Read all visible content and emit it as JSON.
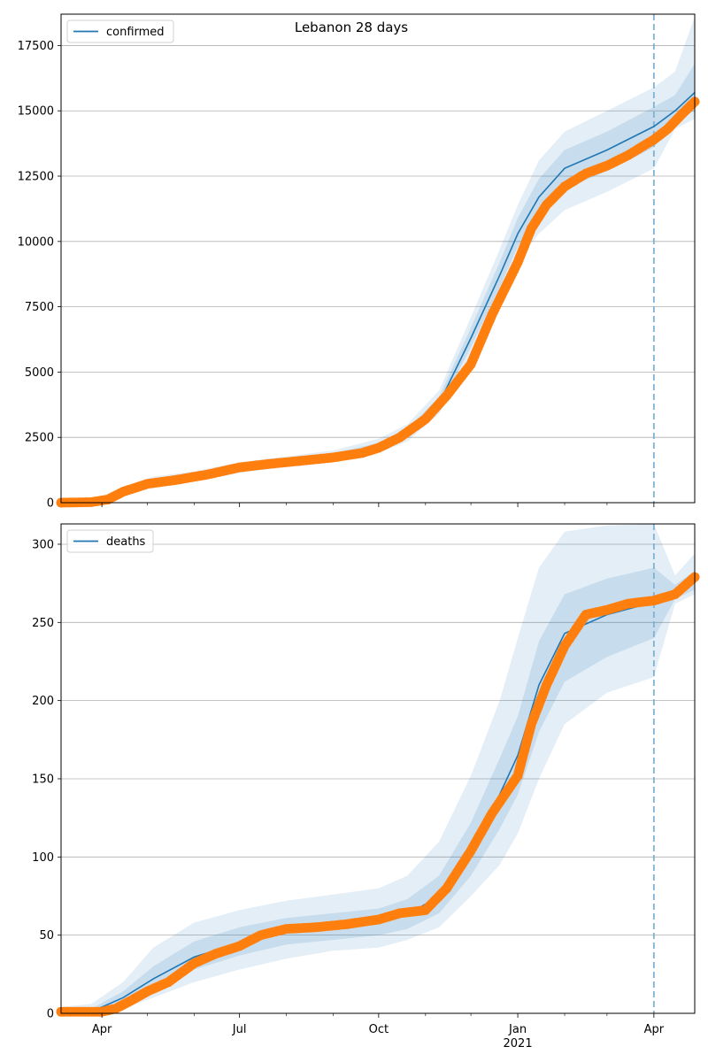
{
  "title": "Lebanon 28 days",
  "colors": {
    "model_line": "#1f77b4",
    "band": "#1f77b4",
    "observed": "#ff7f0e",
    "grid": "#b0b0b0",
    "forecast_line": "#7fb1d3"
  },
  "x_axis": {
    "ticks": [
      {
        "date": "2020-04-01",
        "label": "Apr"
      },
      {
        "date": "2020-07-01",
        "label": "Jul"
      },
      {
        "date": "2020-10-01",
        "label": "Oct"
      },
      {
        "date": "2021-01-01",
        "label": "Jan",
        "sublabel": "2021"
      },
      {
        "date": "2021-04-01",
        "label": "Apr"
      }
    ],
    "range": [
      "2020-03-05",
      "2021-04-28"
    ],
    "forecast_start": "2021-04-01"
  },
  "chart_data": [
    {
      "type": "line",
      "legend": "confirmed",
      "legend_position": "upper-left",
      "grid": "horizontal",
      "ylim": [
        0,
        18700
      ],
      "yticks": [
        0,
        2500,
        5000,
        7500,
        10000,
        12500,
        15000,
        17500
      ],
      "model": {
        "x": [
          "2020-03-05",
          "2020-03-25",
          "2020-04-15",
          "2020-05-05",
          "2020-06-01",
          "2020-07-01",
          "2020-08-01",
          "2020-09-01",
          "2020-10-01",
          "2020-10-20",
          "2020-11-10",
          "2020-12-01",
          "2020-12-20",
          "2021-01-01",
          "2021-01-15",
          "2021-02-01",
          "2021-03-01",
          "2021-04-01",
          "2021-04-15",
          "2021-04-28"
        ],
        "y": [
          0,
          40,
          450,
          800,
          1000,
          1350,
          1570,
          1780,
          2150,
          2650,
          3800,
          6300,
          8700,
          10300,
          11700,
          12800,
          13500,
          14400,
          15000,
          15700
        ],
        "band_outer": [
          [
            0,
            0
          ],
          [
            0,
            80
          ],
          [
            300,
            600
          ],
          [
            600,
            1000
          ],
          [
            800,
            1200
          ],
          [
            1150,
            1550
          ],
          [
            1370,
            1770
          ],
          [
            1570,
            2000
          ],
          [
            1900,
            2450
          ],
          [
            2350,
            3000
          ],
          [
            3400,
            4300
          ],
          [
            5600,
            7100
          ],
          [
            7800,
            9700
          ],
          [
            9300,
            11400
          ],
          [
            10300,
            13100
          ],
          [
            11200,
            14200
          ],
          [
            11900,
            15000
          ],
          [
            12800,
            15900
          ],
          [
            14300,
            16500
          ],
          [
            14700,
            18600
          ]
        ],
        "band_inner": [
          [
            0,
            0
          ],
          [
            10,
            60
          ],
          [
            380,
            520
          ],
          [
            700,
            900
          ],
          [
            900,
            1100
          ],
          [
            1250,
            1450
          ],
          [
            1470,
            1670
          ],
          [
            1680,
            1890
          ],
          [
            2020,
            2290
          ],
          [
            2500,
            2820
          ],
          [
            3600,
            4050
          ],
          [
            5950,
            6700
          ],
          [
            8250,
            9200
          ],
          [
            9800,
            10900
          ],
          [
            11000,
            12400
          ],
          [
            12000,
            13500
          ],
          [
            12700,
            14200
          ],
          [
            13600,
            15150
          ],
          [
            14600,
            15600
          ],
          [
            15000,
            16800
          ]
        ]
      },
      "observed": {
        "x": [
          "2020-03-05",
          "2020-03-25",
          "2020-04-05",
          "2020-04-15",
          "2020-05-01",
          "2020-05-20",
          "2020-06-10",
          "2020-07-01",
          "2020-07-20",
          "2020-08-10",
          "2020-09-01",
          "2020-09-20",
          "2020-10-01",
          "2020-10-15",
          "2020-11-01",
          "2020-11-15",
          "2020-12-01",
          "2020-12-15",
          "2021-01-01",
          "2021-01-10",
          "2021-01-20",
          "2021-02-01",
          "2021-02-15",
          "2021-03-01",
          "2021-03-15",
          "2021-04-01",
          "2021-04-10",
          "2021-04-20",
          "2021-04-28"
        ],
        "y": [
          0,
          20,
          120,
          420,
          720,
          870,
          1080,
          1350,
          1480,
          1600,
          1730,
          1900,
          2100,
          2500,
          3200,
          4100,
          5300,
          7200,
          9200,
          10500,
          11400,
          12100,
          12600,
          12900,
          13300,
          13900,
          14300,
          14900,
          15350
        ]
      }
    },
    {
      "type": "line",
      "legend": "deaths",
      "legend_position": "upper-left",
      "grid": "horizontal",
      "ylim": [
        0,
        313
      ],
      "yticks": [
        0,
        50,
        100,
        150,
        200,
        250,
        300
      ],
      "model": {
        "x": [
          "2020-03-05",
          "2020-03-25",
          "2020-04-15",
          "2020-05-05",
          "2020-06-01",
          "2020-07-01",
          "2020-08-01",
          "2020-09-01",
          "2020-10-01",
          "2020-10-20",
          "2020-11-10",
          "2020-12-01",
          "2020-12-20",
          "2021-01-01",
          "2021-01-15",
          "2021-02-01",
          "2021-03-01",
          "2021-04-01",
          "2021-04-15",
          "2021-04-28"
        ],
        "y": [
          0,
          1,
          10,
          22,
          36,
          45,
          52,
          55,
          58,
          63,
          75,
          105,
          140,
          165,
          210,
          243,
          255,
          263,
          268,
          276
        ],
        "band_outer": [
          [
            0,
            4
          ],
          [
            0,
            6
          ],
          [
            3,
            20
          ],
          [
            10,
            42
          ],
          [
            20,
            58
          ],
          [
            28,
            66
          ],
          [
            35,
            72
          ],
          [
            40,
            76
          ],
          [
            42,
            80
          ],
          [
            47,
            88
          ],
          [
            55,
            110
          ],
          [
            75,
            152
          ],
          [
            95,
            200
          ],
          [
            115,
            240
          ],
          [
            150,
            285
          ],
          [
            185,
            308
          ],
          [
            205,
            312
          ],
          [
            215,
            313
          ],
          [
            262,
            280
          ],
          [
            268,
            294
          ]
        ],
        "band_inner": [
          [
            0,
            2
          ],
          [
            0,
            3
          ],
          [
            6,
            14
          ],
          [
            16,
            30
          ],
          [
            28,
            46
          ],
          [
            37,
            55
          ],
          [
            44,
            61
          ],
          [
            47,
            64
          ],
          [
            50,
            67
          ],
          [
            54,
            73
          ],
          [
            64,
            88
          ],
          [
            88,
            122
          ],
          [
            118,
            163
          ],
          [
            140,
            190
          ],
          [
            180,
            238
          ],
          [
            212,
            268
          ],
          [
            228,
            278
          ],
          [
            240,
            285
          ],
          [
            265,
            274
          ],
          [
            271,
            283
          ]
        ]
      },
      "observed": {
        "x": [
          "2020-03-05",
          "2020-03-25",
          "2020-04-01",
          "2020-04-10",
          "2020-04-20",
          "2020-05-01",
          "2020-05-15",
          "2020-06-01",
          "2020-06-15",
          "2020-07-01",
          "2020-07-15",
          "2020-08-01",
          "2020-08-20",
          "2020-09-10",
          "2020-10-01",
          "2020-10-15",
          "2020-11-01",
          "2020-11-15",
          "2020-12-01",
          "2020-12-15",
          "2021-01-01",
          "2021-01-10",
          "2021-01-20",
          "2021-02-01",
          "2021-02-15",
          "2021-03-01",
          "2021-03-15",
          "2021-04-01",
          "2021-04-15",
          "2021-04-28"
        ],
        "y": [
          1,
          1,
          1,
          3,
          8,
          14,
          20,
          32,
          38,
          43,
          50,
          54,
          55,
          57,
          60,
          64,
          66,
          80,
          104,
          128,
          152,
          185,
          210,
          235,
          255,
          258,
          262,
          264,
          268,
          279
        ]
      }
    }
  ]
}
